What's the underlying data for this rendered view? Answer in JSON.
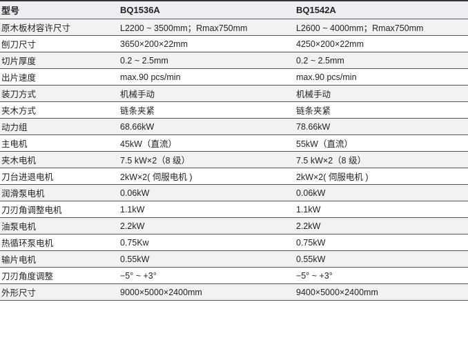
{
  "header": [
    "型号",
    "BQ1536A",
    "BQ1542A"
  ],
  "rows": [
    [
      "原木板材容许尺寸",
      "L2200 ~ 3500mm；Rmax750mm",
      "L2600 ~ 4000mm；Rmax750mm"
    ],
    [
      "刨刀尺寸",
      "3650×200×22mm",
      "4250×200×22mm"
    ],
    [
      "切片厚度",
      "0.2 ~ 2.5mm",
      "0.2 ~ 2.5mm"
    ],
    [
      "出片速度",
      "max.90 pcs/min",
      "max.90 pcs/min"
    ],
    [
      "装刀方式",
      "机械手动",
      "机械手动"
    ],
    [
      "夹木方式",
      "链条夹紧",
      "链条夹紧"
    ],
    [
      "动力组",
      "68.66kW",
      "78.66kW"
    ],
    [
      "主电机",
      "45kW（直流）",
      "55kW（直流）"
    ],
    [
      "夹木电机",
      "7.5 kW×2（8 级）",
      "7.5 kW×2（8 级）"
    ],
    [
      "刀台进退电机",
      "2kW×2( 伺服电机 )",
      "2kW×2( 伺服电机 )"
    ],
    [
      "润滑泵电机",
      "0.06kW",
      "0.06kW"
    ],
    [
      "刀刃角调整电机",
      "1.1kW",
      "1.1kW"
    ],
    [
      "油泵电机",
      "2.2kW",
      "2.2kW"
    ],
    [
      "热循环泵电机",
      "0.75Kw",
      "0.75kW"
    ],
    [
      "输片电机",
      "0.55kW",
      "0.55kW"
    ],
    [
      "刀刃角度调整",
      "−5° ~ +3°",
      "−5° ~ +3°"
    ],
    [
      "外形尺寸",
      "9000×5000×2400mm",
      "9400×5000×2400mm"
    ]
  ]
}
